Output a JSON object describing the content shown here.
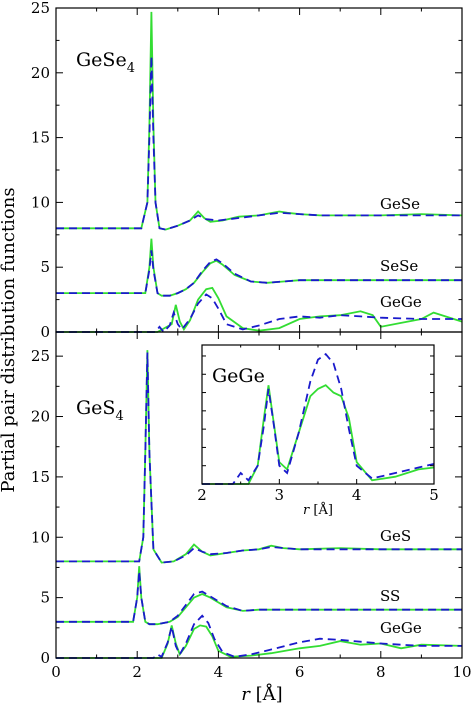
{
  "chart_data": [
    {
      "type": "line",
      "panel": "top",
      "label_main": "GeSe",
      "label_sub": "4",
      "ylabel": "Partial pair distribution functions",
      "xlim": [
        0,
        10
      ],
      "ylim": [
        0,
        25
      ],
      "y_ticks": [
        0,
        5,
        10,
        15,
        20,
        25
      ],
      "x_ticks": [
        0,
        2,
        4,
        6,
        8,
        10
      ],
      "grid": false,
      "series": [
        {
          "name": "GeSe",
          "style": "solid",
          "color": "#33dd33",
          "x": [
            0,
            2.1,
            2.25,
            2.3,
            2.35,
            2.4,
            2.45,
            2.55,
            2.7,
            3.0,
            3.3,
            3.5,
            3.65,
            3.8,
            4.1,
            4.5,
            5.0,
            5.5,
            5.7,
            6.0,
            6.5,
            7.0,
            8.0,
            9.0,
            10.0
          ],
          "y": [
            8.0,
            8.0,
            10.0,
            16.0,
            24.7,
            16.0,
            10.0,
            8.0,
            7.9,
            8.2,
            8.6,
            9.3,
            8.8,
            8.5,
            8.6,
            8.9,
            9.0,
            9.3,
            9.2,
            9.1,
            9.0,
            9.0,
            9.0,
            9.1,
            9.0
          ]
        },
        {
          "name": "GeSe",
          "style": "dashed",
          "color": "#1a1acc",
          "x": [
            0,
            2.1,
            2.25,
            2.3,
            2.35,
            2.4,
            2.45,
            2.55,
            2.7,
            3.0,
            3.3,
            3.5,
            3.7,
            4.0,
            4.5,
            5.0,
            5.5,
            6.0,
            6.5,
            7.0,
            8.0,
            9.0,
            10.0
          ],
          "y": [
            8.0,
            8.0,
            10.0,
            15.0,
            21.3,
            15.0,
            10.0,
            8.0,
            7.9,
            8.2,
            8.6,
            9.0,
            8.7,
            8.6,
            8.8,
            9.0,
            9.2,
            9.1,
            9.0,
            9.0,
            9.0,
            9.0,
            9.0
          ]
        },
        {
          "name": "SeSe",
          "style": "solid",
          "color": "#33dd33",
          "x": [
            0,
            2.2,
            2.3,
            2.35,
            2.4,
            2.5,
            2.6,
            2.8,
            3.0,
            3.2,
            3.4,
            3.6,
            3.8,
            3.95,
            4.1,
            4.4,
            4.8,
            5.2,
            5.6,
            6.0,
            7.0,
            8.0,
            9.0,
            10.0
          ],
          "y": [
            3.0,
            3.0,
            5.0,
            7.2,
            5.0,
            3.0,
            2.8,
            2.8,
            3.0,
            3.3,
            3.8,
            4.6,
            5.3,
            5.5,
            5.2,
            4.4,
            3.9,
            3.8,
            3.9,
            4.0,
            4.0,
            4.0,
            4.0,
            4.0
          ]
        },
        {
          "name": "SeSe",
          "style": "dashed",
          "color": "#1a1acc",
          "x": [
            0,
            2.2,
            2.3,
            2.35,
            2.4,
            2.5,
            2.6,
            2.8,
            3.0,
            3.2,
            3.4,
            3.6,
            3.8,
            3.95,
            4.1,
            4.4,
            4.8,
            5.2,
            5.6,
            6.0,
            7.0,
            8.0,
            9.0,
            10.0
          ],
          "y": [
            3.0,
            3.0,
            4.8,
            6.3,
            4.8,
            3.0,
            2.8,
            2.8,
            3.0,
            3.3,
            3.8,
            4.7,
            5.4,
            5.6,
            5.3,
            4.5,
            3.9,
            3.8,
            3.9,
            4.0,
            4.0,
            4.0,
            4.0,
            4.0
          ]
        },
        {
          "name": "GeGe",
          "style": "solid",
          "color": "#33dd33",
          "x": [
            0,
            2.5,
            2.85,
            2.95,
            3.05,
            3.15,
            3.3,
            3.5,
            3.7,
            3.85,
            4.0,
            4.2,
            4.6,
            5.0,
            5.5,
            6.0,
            6.5,
            7.0,
            7.5,
            7.8,
            8.0,
            8.5,
            9.0,
            9.3,
            10.0
          ],
          "y": [
            0,
            0,
            0.6,
            2.1,
            0.8,
            0.2,
            0.9,
            2.5,
            3.3,
            3.4,
            2.6,
            1.2,
            0.3,
            0.1,
            0.3,
            1.0,
            1.2,
            1.3,
            1.6,
            1.3,
            0.4,
            0.7,
            1.0,
            1.5,
            0.8
          ]
        },
        {
          "name": "GeGe",
          "style": "dashed",
          "color": "#1a1acc",
          "x": [
            0,
            2.45,
            2.55,
            2.65,
            2.8,
            2.9,
            3.0,
            3.1,
            3.3,
            3.5,
            3.7,
            3.85,
            4.0,
            4.2,
            4.6,
            5.0,
            5.5,
            6.0,
            6.5,
            7.0,
            7.5,
            8.0,
            9.0,
            10.0
          ],
          "y": [
            0,
            0,
            0.4,
            0,
            0.5,
            1.5,
            0.6,
            0.2,
            1.0,
            2.2,
            2.9,
            2.6,
            1.8,
            0.6,
            0.2,
            0.5,
            1.0,
            1.2,
            1.1,
            1.3,
            1.2,
            1.1,
            1.0,
            1.0
          ]
        }
      ],
      "annotations": [
        "GeSe",
        "SeSe",
        "GeGe"
      ]
    },
    {
      "type": "line",
      "panel": "bottom",
      "label_main": "GeS",
      "label_sub": "4",
      "xlabel_var": "r",
      "xlabel_unit": "[Å]",
      "xlim": [
        0,
        10
      ],
      "ylim": [
        0,
        27
      ],
      "y_ticks": [
        0,
        5,
        10,
        15,
        20,
        25
      ],
      "x_ticks": [
        0,
        2,
        4,
        6,
        8,
        10
      ],
      "grid": false,
      "series": [
        {
          "name": "GeS",
          "style": "solid",
          "color": "#33dd33",
          "x": [
            0,
            2.05,
            2.15,
            2.2,
            2.25,
            2.3,
            2.4,
            2.6,
            2.9,
            3.2,
            3.4,
            3.6,
            3.8,
            4.2,
            4.6,
            5.0,
            5.3,
            5.6,
            6.0,
            7.0,
            8.0,
            9.0,
            10.0
          ],
          "y": [
            8.0,
            8.0,
            10.0,
            17.0,
            25.5,
            17.0,
            9.0,
            7.9,
            8.0,
            8.6,
            9.4,
            8.8,
            8.5,
            8.7,
            8.9,
            9.0,
            9.3,
            9.1,
            9.0,
            9.1,
            9.0,
            9.0,
            9.0
          ]
        },
        {
          "name": "GeS",
          "style": "dashed",
          "color": "#1a1acc",
          "x": [
            0,
            2.05,
            2.15,
            2.2,
            2.25,
            2.3,
            2.4,
            2.6,
            2.9,
            3.2,
            3.4,
            3.6,
            3.8,
            4.2,
            4.6,
            5.0,
            5.3,
            5.6,
            6.0,
            7.0,
            8.0,
            9.0,
            10.0
          ],
          "y": [
            8.0,
            8.0,
            10.0,
            17.0,
            25.3,
            17.0,
            9.0,
            7.9,
            8.0,
            8.5,
            9.1,
            8.8,
            8.6,
            8.7,
            8.9,
            9.0,
            9.2,
            9.1,
            9.0,
            9.0,
            9.0,
            9.0,
            9.0
          ]
        },
        {
          "name": "SS",
          "style": "solid",
          "color": "#33dd33",
          "x": [
            0,
            1.9,
            2.0,
            2.05,
            2.1,
            2.2,
            2.3,
            2.5,
            2.8,
            3.0,
            3.2,
            3.4,
            3.6,
            3.8,
            4.2,
            4.6,
            5.0,
            6.0,
            7.0,
            8.0,
            9.0,
            10.0
          ],
          "y": [
            3.0,
            3.0,
            5.0,
            7.6,
            5.0,
            3.0,
            2.8,
            2.8,
            3.0,
            3.4,
            4.2,
            5.0,
            5.3,
            5.0,
            4.2,
            3.9,
            4.0,
            4.0,
            4.0,
            4.0,
            4.0,
            4.0
          ]
        },
        {
          "name": "SS",
          "style": "dashed",
          "color": "#1a1acc",
          "x": [
            0,
            1.9,
            2.0,
            2.05,
            2.1,
            2.2,
            2.3,
            2.5,
            2.8,
            3.0,
            3.2,
            3.4,
            3.6,
            3.8,
            4.2,
            4.6,
            5.0,
            6.0,
            7.0,
            8.0,
            9.0,
            10.0
          ],
          "y": [
            3.0,
            3.0,
            5.0,
            7.2,
            5.0,
            3.0,
            2.8,
            2.8,
            3.0,
            3.5,
            4.4,
            5.3,
            5.5,
            5.1,
            4.3,
            3.9,
            4.0,
            4.0,
            4.0,
            4.0,
            4.0,
            4.0
          ]
        },
        {
          "name": "GeGe",
          "style": "solid",
          "color": "#33dd33",
          "x": [
            0,
            2.6,
            2.75,
            2.85,
            2.95,
            3.05,
            3.2,
            3.4,
            3.55,
            3.7,
            3.85,
            4.0,
            4.3,
            4.8,
            5.3,
            6.0,
            6.5,
            7.0,
            7.5,
            8.0,
            8.5,
            9.0,
            10.0
          ],
          "y": [
            0,
            0,
            1.2,
            2.7,
            1.2,
            0.3,
            1.0,
            2.4,
            2.7,
            2.6,
            1.8,
            0.6,
            0.1,
            0.2,
            0.4,
            0.8,
            1.0,
            1.4,
            1.1,
            1.2,
            0.8,
            1.1,
            1.0
          ]
        },
        {
          "name": "GeGe",
          "style": "dashed",
          "color": "#1a1acc",
          "x": [
            0,
            2.4,
            2.5,
            2.6,
            2.75,
            2.85,
            2.95,
            3.05,
            3.2,
            3.4,
            3.6,
            3.75,
            3.9,
            4.1,
            4.4,
            4.8,
            5.3,
            6.0,
            6.5,
            7.0,
            8.0,
            9.0,
            10.0
          ],
          "y": [
            0,
            0,
            0.3,
            0.1,
            1.3,
            2.6,
            1.0,
            0.3,
            1.2,
            2.8,
            3.5,
            2.9,
            1.6,
            0.5,
            0.1,
            0.3,
            0.7,
            1.3,
            1.6,
            1.5,
            1.2,
            1.0,
            1.0
          ]
        }
      ],
      "annotations": [
        "GeS",
        "SS",
        "GeGe"
      ]
    },
    {
      "type": "line",
      "panel": "inset",
      "label_main": "GeGe",
      "xlabel_var": "r",
      "xlabel_unit": "[Å]",
      "xlim": [
        2,
        5
      ],
      "ylim": [
        0,
        3.8
      ],
      "x_ticks": [
        2,
        3,
        4,
        5
      ],
      "grid": false,
      "series": [
        {
          "name": "GeGe",
          "style": "solid",
          "color": "#33dd33",
          "x": [
            2.0,
            2.6,
            2.72,
            2.8,
            2.86,
            2.92,
            3.0,
            3.1,
            3.25,
            3.4,
            3.5,
            3.6,
            3.7,
            3.8,
            3.9,
            4.0,
            4.2,
            4.5,
            4.8,
            5.0
          ],
          "y": [
            0,
            0,
            0.5,
            1.8,
            2.7,
            1.8,
            0.6,
            0.4,
            1.4,
            2.4,
            2.6,
            2.7,
            2.5,
            2.4,
            1.8,
            0.6,
            0.1,
            0.2,
            0.4,
            0.45
          ]
        },
        {
          "name": "GeGe",
          "style": "dashed",
          "color": "#1a1acc",
          "x": [
            2.0,
            2.4,
            2.5,
            2.6,
            2.72,
            2.8,
            2.86,
            2.93,
            3.0,
            3.1,
            3.25,
            3.4,
            3.5,
            3.6,
            3.7,
            3.8,
            3.9,
            4.0,
            4.2,
            4.5,
            4.8,
            5.0
          ],
          "y": [
            0,
            0,
            0.3,
            0.1,
            0.5,
            1.6,
            2.6,
            1.6,
            0.5,
            0.3,
            1.4,
            2.8,
            3.4,
            3.55,
            3.3,
            2.6,
            1.5,
            0.5,
            0.15,
            0.3,
            0.45,
            0.55
          ]
        }
      ]
    }
  ]
}
